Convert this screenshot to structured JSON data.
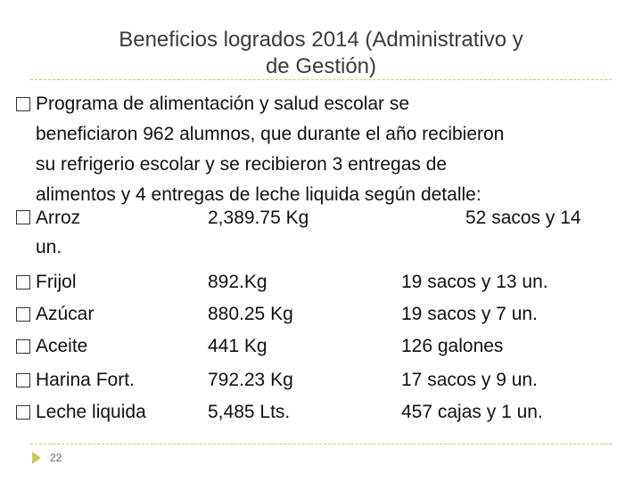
{
  "slide": {
    "title_line1": "Beneficios logrados 2014 (Administrativo y",
    "title_line2": "de Gestión)",
    "intro": [
      "Programa de alimentación y salud escolar se",
      "beneficiaron 962 alumnos, que durante el año recibieron",
      "su refrigerio escolar y se recibieron 3 entregas de",
      "alimentos y 4 entregas de leche liquida según detalle:"
    ],
    "items": [
      {
        "name": "Arroz",
        "qty": "2,389.75 Kg",
        "units": "52 sacos y 14",
        "units_cont": "un."
      },
      {
        "name": "Frijol",
        "qty": "892.Kg",
        "units": "19 sacos y 13 un."
      },
      {
        "name": "Azúcar",
        "qty": "880.25 Kg",
        "units": "19 sacos y 7 un."
      },
      {
        "name": "Aceite",
        "qty": "441 Kg",
        "units": "126 galones"
      },
      {
        "name": "Harina Fort.",
        "qty": "792.23 Kg",
        "units": "17 sacos y 9 un."
      },
      {
        "name": "Leche liquida",
        "qty": "5,485 Lts.",
        "units": "457 cajas y 1 un."
      }
    ],
    "page_number": "22"
  }
}
